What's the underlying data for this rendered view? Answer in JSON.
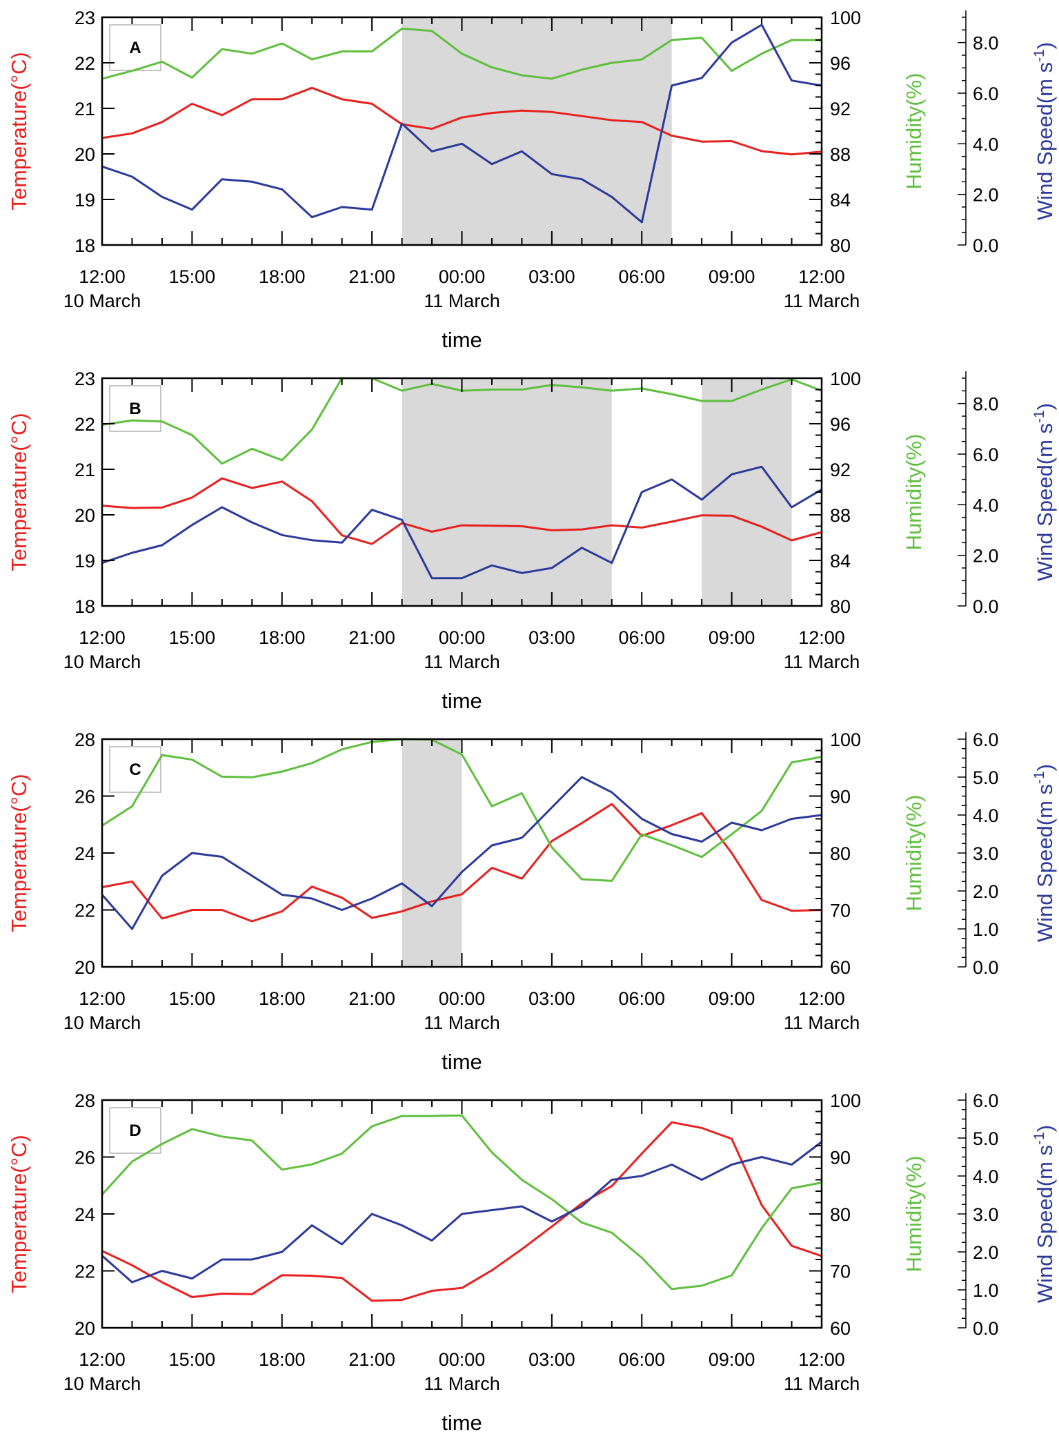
{
  "colors": {
    "temperature": "#e8211f",
    "humidity": "#5fbf3e",
    "wind": "#2c3a9b",
    "shade": "#d9d9d9",
    "axis": "#000000"
  },
  "x_axis": {
    "title": "time",
    "tick_labels": [
      "12:00",
      "15:00",
      "18:00",
      "21:00",
      "00:00",
      "03:00",
      "06:00",
      "09:00",
      "12:00"
    ],
    "date_labels": [
      {
        "at_hour": 0,
        "text": "10 March"
      },
      {
        "at_hour": 12,
        "text": "11 March"
      },
      {
        "at_hour": 24,
        "text": "11 March"
      }
    ],
    "hours": [
      0,
      1,
      2,
      3,
      4,
      5,
      6,
      7,
      8,
      9,
      10,
      11,
      12,
      13,
      14,
      15,
      16,
      17,
      18,
      19,
      20,
      21,
      22,
      23,
      24
    ]
  },
  "axis_titles": {
    "temperature": "Temperature(°C)",
    "humidity": "Humidity(%)",
    "wind_base": "Wind Speed(m s",
    "wind_sup": "-1",
    "wind_close": ")"
  },
  "chart_data": [
    {
      "type": "line",
      "panel": "A",
      "x": [
        0,
        1,
        2,
        3,
        4,
        5,
        6,
        7,
        8,
        9,
        10,
        11,
        12,
        13,
        14,
        15,
        16,
        17,
        18,
        19,
        20,
        21,
        22,
        23,
        24
      ],
      "shaded_intervals": [
        [
          10,
          19
        ]
      ],
      "temperature": {
        "name": "Temperature",
        "ylim": [
          18,
          23
        ],
        "ticks": [
          "18",
          "19",
          "20",
          "21",
          "22",
          "23"
        ],
        "values": [
          20.35,
          20.45,
          20.7,
          21.1,
          20.85,
          21.2,
          21.2,
          21.45,
          21.2,
          21.1,
          20.65,
          20.55,
          20.8,
          20.9,
          20.95,
          20.92,
          20.83,
          20.74,
          20.7,
          20.4,
          20.27,
          20.28,
          20.06,
          19.99,
          20.05
        ]
      },
      "humidity": {
        "name": "Humidity",
        "ylim": [
          80,
          100
        ],
        "ticks": [
          "80",
          "84",
          "88",
          "92",
          "96",
          "100"
        ],
        "values": [
          94.6,
          95.3,
          96.1,
          94.7,
          97.2,
          96.8,
          97.7,
          96.3,
          97,
          97,
          99,
          98.8,
          96.8,
          95.6,
          94.9,
          94.6,
          95.4,
          96,
          96.3,
          98,
          98.2,
          95.3,
          96.8,
          98,
          98
        ]
      },
      "wind": {
        "name": "Wind Speed",
        "ylim": [
          0,
          9.0
        ],
        "ticks": [
          "0.0",
          "2.0",
          "4.0",
          "6.0",
          "8.0"
        ],
        "values": [
          3.1,
          2.7,
          1.9,
          1.4,
          2.6,
          2.5,
          2.2,
          1.1,
          1.5,
          1.4,
          4.8,
          3.7,
          4.0,
          3.2,
          3.7,
          2.8,
          2.6,
          1.9,
          0.9,
          6.3,
          6.6,
          8.0,
          8.7,
          6.5,
          6.3
        ]
      }
    },
    {
      "type": "line",
      "panel": "B",
      "x": [
        0,
        1,
        2,
        3,
        4,
        5,
        6,
        7,
        8,
        9,
        10,
        11,
        12,
        13,
        14,
        15,
        16,
        17,
        18,
        19,
        20,
        21,
        22,
        23,
        24
      ],
      "shaded_intervals": [
        [
          10,
          17
        ],
        [
          20,
          23
        ]
      ],
      "temperature": {
        "name": "Temperature",
        "ylim": [
          18,
          23
        ],
        "ticks": [
          "18",
          "19",
          "20",
          "21",
          "22",
          "23"
        ],
        "values": [
          20.2,
          20.15,
          20.16,
          20.38,
          20.8,
          20.59,
          20.73,
          20.3,
          19.55,
          19.36,
          19.82,
          19.63,
          19.77,
          19.76,
          19.75,
          19.66,
          19.68,
          19.77,
          19.72,
          19.85,
          19.99,
          19.98,
          19.74,
          19.44,
          19.62
        ]
      },
      "humidity": {
        "name": "Humidity",
        "ylim": [
          80,
          100
        ],
        "ticks": [
          "80",
          "84",
          "88",
          "92",
          "96",
          "100"
        ],
        "values": [
          95.9,
          96.3,
          96.2,
          95,
          92.5,
          93.8,
          92.8,
          95.5,
          100,
          100,
          98.9,
          99.5,
          98.9,
          99,
          99,
          99.4,
          99.2,
          98.9,
          99.1,
          98.6,
          98,
          98,
          99,
          99.9,
          98.9
        ]
      },
      "wind": {
        "name": "Wind Speed",
        "ylim": [
          0,
          9.0
        ],
        "ticks": [
          "0.0",
          "2.0",
          "4.0",
          "6.0",
          "8.0"
        ],
        "values": [
          1.7,
          2.1,
          2.4,
          3.2,
          3.9,
          3.3,
          2.8,
          2.6,
          2.5,
          3.8,
          3.4,
          1.1,
          1.1,
          1.6,
          1.3,
          1.5,
          2.3,
          1.7,
          4.5,
          5.0,
          4.2,
          5.2,
          5.5,
          3.9,
          4.6
        ]
      }
    },
    {
      "type": "line",
      "panel": "C",
      "x": [
        0,
        1,
        2,
        3,
        4,
        5,
        6,
        7,
        8,
        9,
        10,
        11,
        12,
        13,
        14,
        15,
        16,
        17,
        18,
        19,
        20,
        21,
        22,
        23,
        24
      ],
      "shaded_intervals": [
        [
          10,
          12
        ]
      ],
      "temperature": {
        "name": "Temperature",
        "ylim": [
          20,
          28
        ],
        "ticks": [
          "20",
          "22",
          "24",
          "26",
          "28"
        ],
        "values": [
          22.8,
          23,
          21.7,
          22,
          22,
          21.6,
          21.95,
          22.82,
          22.43,
          21.72,
          21.95,
          22.3,
          22.55,
          23.48,
          23.1,
          24.42,
          25.05,
          25.72,
          24.6,
          24.98,
          25.4,
          24,
          22.35,
          21.97,
          22
        ]
      },
      "humidity": {
        "name": "Humidity",
        "ylim": [
          60,
          100
        ],
        "ticks": [
          "60",
          "70",
          "80",
          "90",
          "100"
        ],
        "values": [
          84.8,
          88.2,
          97.2,
          96.4,
          93.4,
          93.3,
          94.3,
          95.8,
          98.2,
          99.5,
          100,
          99.9,
          97.3,
          88.2,
          90.5,
          81,
          75.4,
          75.1,
          83.3,
          81.4,
          79.3,
          83.3,
          87.4,
          95.9,
          96.9
        ]
      },
      "wind": {
        "name": "Wind Speed",
        "ylim": [
          0,
          6.0
        ],
        "ticks": [
          "0.0",
          "1.0",
          "2.0",
          "3.0",
          "4.0",
          "5.0",
          "6.0"
        ],
        "values": [
          1.9,
          1.0,
          2.4,
          3.0,
          2.9,
          2.4,
          1.9,
          1.8,
          1.5,
          1.8,
          2.2,
          1.6,
          2.5,
          3.2,
          3.4,
          4.2,
          5.0,
          4.6,
          3.9,
          3.5,
          3.3,
          3.8,
          3.6,
          3.9,
          4.0
        ]
      }
    },
    {
      "type": "line",
      "panel": "D",
      "x": [
        0,
        1,
        2,
        3,
        4,
        5,
        6,
        7,
        8,
        9,
        10,
        11,
        12,
        13,
        14,
        15,
        16,
        17,
        18,
        19,
        20,
        21,
        22,
        23,
        24
      ],
      "shaded_intervals": [],
      "temperature": {
        "name": "Temperature",
        "ylim": [
          20,
          28
        ],
        "ticks": [
          "20",
          "22",
          "24",
          "26",
          "28"
        ],
        "values": [
          22.7,
          22.2,
          21.6,
          21.08,
          21.2,
          21.18,
          21.85,
          21.83,
          21.75,
          20.95,
          20.98,
          21.3,
          21.4,
          22.02,
          22.76,
          23.56,
          24.37,
          24.98,
          26.12,
          27.22,
          27.02,
          26.64,
          24.31,
          22.88,
          22.52
        ]
      },
      "humidity": {
        "name": "Humidity",
        "ylim": [
          60,
          100
        ],
        "ticks": [
          "60",
          "70",
          "80",
          "90",
          "100"
        ],
        "values": [
          83.4,
          89.2,
          92.3,
          94.9,
          93.6,
          92.9,
          87.8,
          88.7,
          90.6,
          95.4,
          97.2,
          97.2,
          97.3,
          90.8,
          86,
          82.6,
          78.5,
          76.7,
          72.3,
          66.8,
          67.4,
          69.2,
          77.5,
          84.5,
          85.5
        ]
      },
      "wind": {
        "name": "Wind Speed",
        "ylim": [
          0,
          6.0
        ],
        "ticks": [
          "0.0",
          "1.0",
          "2.0",
          "3.0",
          "4.0",
          "5.0",
          "6.0"
        ],
        "values": [
          1.9,
          1.2,
          1.5,
          1.3,
          1.8,
          1.8,
          2.0,
          2.7,
          2.2,
          3.0,
          2.7,
          2.3,
          3.0,
          3.1,
          3.2,
          2.8,
          3.2,
          3.9,
          4.0,
          4.3,
          3.9,
          4.3,
          4.5,
          4.3,
          4.9
        ]
      }
    }
  ]
}
